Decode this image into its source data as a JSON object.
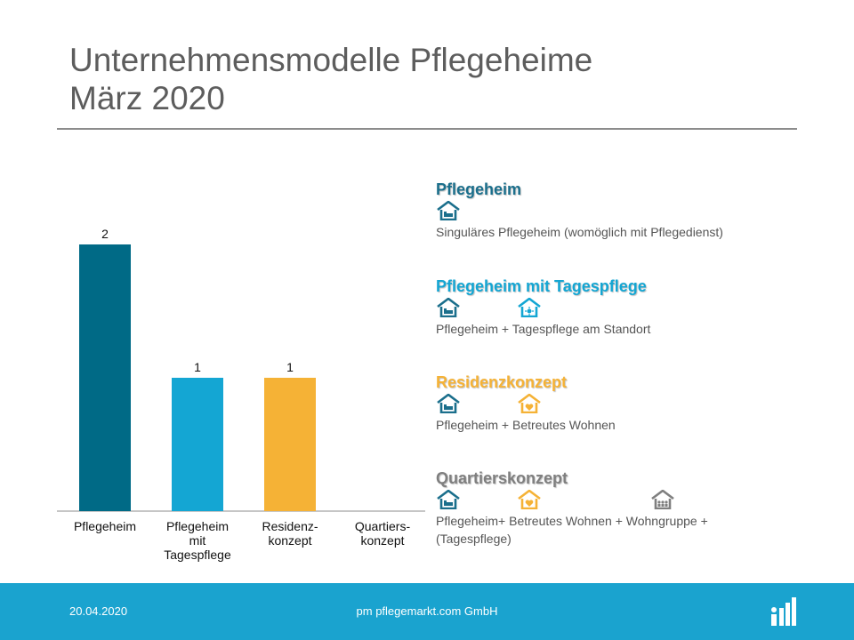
{
  "title": {
    "line1": "Unternehmensmodelle Pflegeheime",
    "line2": "März 2020"
  },
  "chart_data": {
    "type": "bar",
    "categories": [
      "Pflegeheim",
      "Pflegeheim\nmit\nTagespflege",
      "Residenz-\nkonzept",
      "Quartiers-\nkonzept"
    ],
    "values": [
      2,
      1,
      1,
      0
    ],
    "data_labels": [
      "2",
      "1",
      "1",
      ""
    ],
    "colors": [
      "#006a86",
      "#14a6d3",
      "#f5b236",
      "#8c8c8c"
    ],
    "ylim": [
      0,
      2
    ],
    "grid": false,
    "title": "",
    "xlabel": "",
    "ylabel": ""
  },
  "legend": [
    {
      "title": "Pflegeheim",
      "color": "#1b6f8c",
      "icons": [
        "house-bed-icon"
      ],
      "description": "Singuläres Pflegeheim (womöglich mit Pflegedienst)"
    },
    {
      "title": "Pflegeheim mit Tagespflege",
      "color": "#14a6d3",
      "icons": [
        "house-bed-icon",
        "house-sun-icon"
      ],
      "description": "Pflegeheim + Tagespflege am Standort"
    },
    {
      "title": "Residenzkonzept",
      "color": "#f5b236",
      "icons": [
        "house-bed-icon",
        "house-heart-icon"
      ],
      "description": "Pflegeheim + Betreutes Wohnen"
    },
    {
      "title": "Quartierskonzept",
      "color": "#7f7f7f",
      "icons": [
        "house-bed-icon",
        "house-heart-icon",
        "house-group-icon"
      ],
      "description": "Pflegeheim+ Betreutes Wohnen + Wohngruppe + (Tagespflege)"
    }
  ],
  "footer": {
    "date": "20.04.2020",
    "company": "pm pflegemarkt.com GmbH",
    "logo_icon": "pflegemarkt-logo-icon"
  }
}
